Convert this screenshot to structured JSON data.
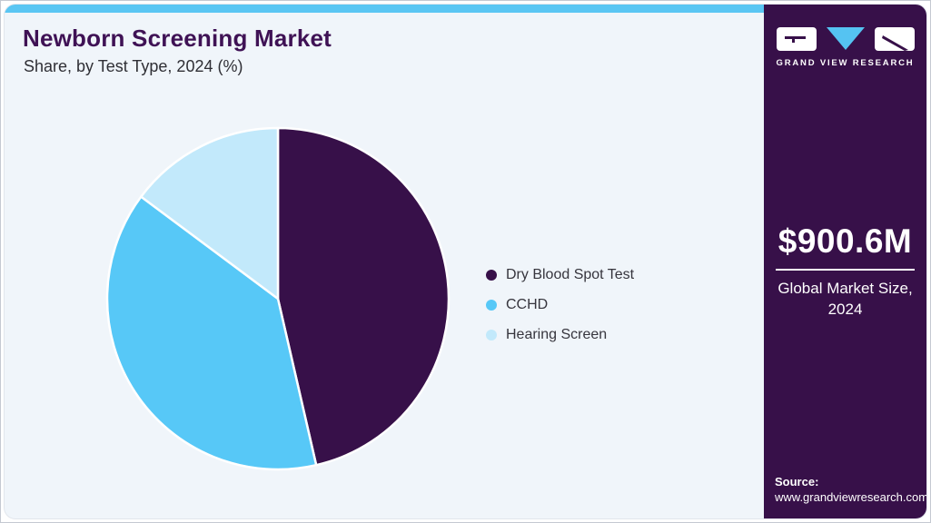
{
  "header": {
    "title": "Newborn Screening Market",
    "subtitle": "Share, by Test Type, 2024 (%)"
  },
  "chart_data": {
    "type": "pie",
    "title": "Newborn Screening Market Share, by Test Type, 2024 (%)",
    "start_angle_deg": 0,
    "direction": "clockwise",
    "values_unit": "%",
    "legend_position": "right",
    "slices": [
      {
        "label": "Dry Blood Spot Test",
        "value": 46.4,
        "color": "#371049"
      },
      {
        "label": "CCHD",
        "value": 38.8,
        "color": "#57c8f7"
      },
      {
        "label": "Hearing Screen",
        "value": 14.8,
        "color": "#c2e9fb"
      }
    ]
  },
  "sidebar": {
    "logo_text": "GRAND VIEW RESEARCH",
    "market_size": "$900.6M",
    "market_size_caption": "Global Market Size, 2024",
    "source_label": "Source:",
    "source_url": "www.grandviewresearch.com"
  },
  "colors": {
    "accent_blue": "#5ac6f3",
    "brand_dark_purple": "#371049",
    "brand_title_purple": "#3f1255",
    "card_background": "#f0f5fa",
    "slice_sky_blue": "#57c8f7",
    "slice_light_blue": "#c2e9fb",
    "text_dark": "#36353d"
  }
}
